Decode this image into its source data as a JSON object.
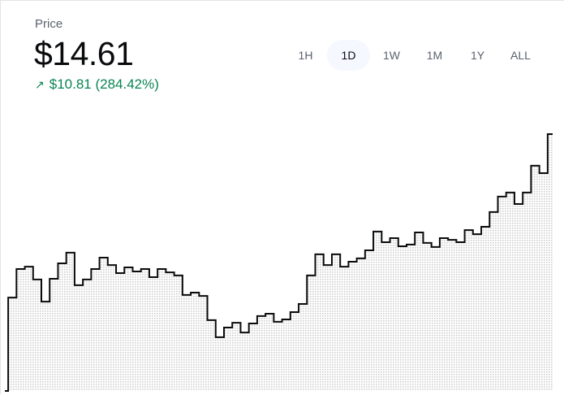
{
  "header": {
    "label": "Price",
    "price": "$14.61",
    "change_icon": "arrow-up-right-icon",
    "change": "$10.81 (284.42%)",
    "change_color": "#098551"
  },
  "tabs": [
    {
      "label": "1H",
      "active": false
    },
    {
      "label": "1D",
      "active": true
    },
    {
      "label": "1W",
      "active": false
    },
    {
      "label": "1M",
      "active": false
    },
    {
      "label": "1Y",
      "active": false
    },
    {
      "label": "ALL",
      "active": false
    }
  ],
  "chart_data": {
    "type": "area",
    "interpolation": "step",
    "line_color": "#0a0b0d",
    "fill": "dotted-gray",
    "axes_visible": false,
    "grid": false,
    "ylim": [
      3.8,
      14.61
    ],
    "values": [
      3.8,
      7.73,
      8.93,
      9.03,
      8.49,
      7.56,
      8.52,
      9.17,
      9.62,
      8.25,
      8.49,
      8.93,
      9.41,
      9.1,
      8.76,
      9.0,
      8.83,
      8.93,
      8.59,
      8.93,
      8.79,
      8.66,
      7.84,
      7.94,
      7.8,
      6.78,
      6.06,
      6.47,
      6.67,
      6.26,
      6.64,
      6.95,
      7.05,
      6.71,
      6.81,
      7.12,
      7.46,
      8.66,
      9.55,
      9.1,
      9.55,
      9.03,
      9.24,
      9.38,
      9.72,
      10.51,
      10.06,
      10.23,
      9.89,
      9.96,
      10.47,
      10.03,
      9.86,
      10.23,
      10.16,
      10.06,
      10.57,
      10.4,
      10.71,
      11.33,
      11.98,
      12.15,
      11.67,
      12.15,
      13.28,
      12.97,
      14.61
    ]
  }
}
